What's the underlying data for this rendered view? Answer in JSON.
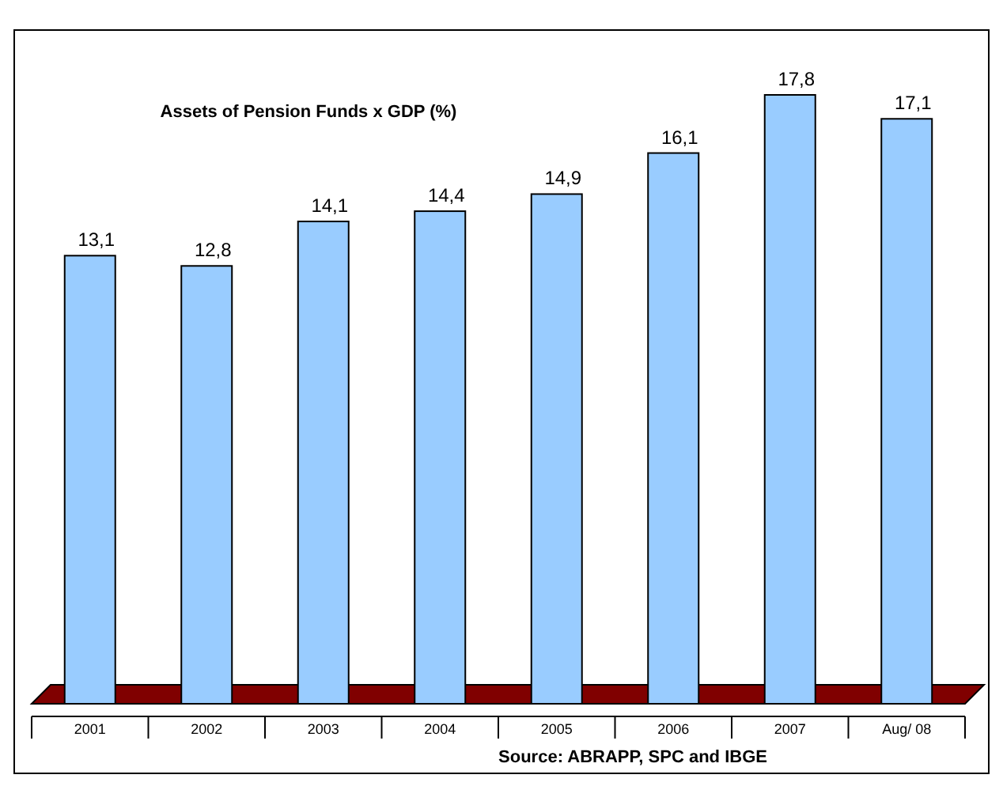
{
  "chart_data": {
    "type": "bar",
    "title": "Assets of Pension Funds x GDP (%)",
    "categories": [
      "2001",
      "2002",
      "2003",
      "2004",
      "2005",
      "2006",
      "2007",
      "Aug/ 08"
    ],
    "values": [
      13.1,
      12.8,
      14.1,
      14.4,
      14.9,
      16.1,
      17.8,
      17.1
    ],
    "value_labels": [
      "13,1",
      "12,8",
      "14,1",
      "14,4",
      "14,9",
      "16,1",
      "17,8",
      "17,1"
    ],
    "color": "#99ccff",
    "tick_labels": "x",
    "annotations": [
      "Source: ABRAPP, SPC and IBGE"
    ]
  }
}
